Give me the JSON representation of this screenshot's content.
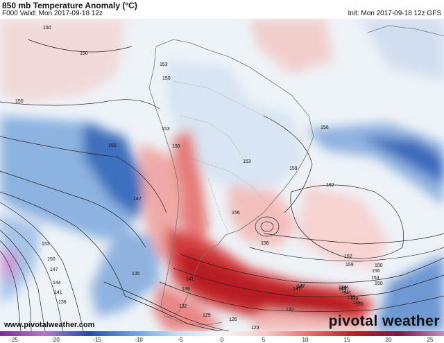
{
  "header": {
    "title": "850 mb Temperature Anomaly (°C)",
    "valid": "F000 Valid: Mon 2017-09-18 12z",
    "init": "Init: Mon 2017-09-18 12z GFS"
  },
  "footer": {
    "website": "www.pivotalweather.com",
    "brand": "pivotal weather"
  },
  "colorbar": {
    "ticks": [
      "-25",
      "-20",
      "-15",
      "-10",
      "-5",
      "0",
      "5",
      "10",
      "15",
      "20",
      "25"
    ],
    "stops": [
      "#7b2a8e",
      "#b479c8",
      "#1f4fa6",
      "#6aa0da",
      "#c6dcf1",
      "#f7f7f7",
      "#f6c6c3",
      "#e66a6a",
      "#b81d20",
      "#7a1a4e",
      "#c58cc0"
    ]
  },
  "contours": {
    "labels": [
      "150",
      "150",
      "150",
      "150",
      "153",
      "150",
      "156",
      "153",
      "147",
      "153",
      "150",
      "147",
      "144",
      "141",
      "138",
      "135",
      "141",
      "138",
      "132",
      "129",
      "126",
      "123",
      "132",
      "135",
      "138",
      "141",
      "144",
      "147",
      "150",
      "153",
      "156",
      "159",
      "162",
      "156",
      "156",
      "156",
      "159",
      "162",
      "150",
      "147",
      "144",
      "153",
      "135",
      "138",
      "141",
      "144",
      "147"
    ]
  },
  "colors": {
    "warm": "#c8282a",
    "cool": "#2c5fb0",
    "land_border": "#555555"
  }
}
